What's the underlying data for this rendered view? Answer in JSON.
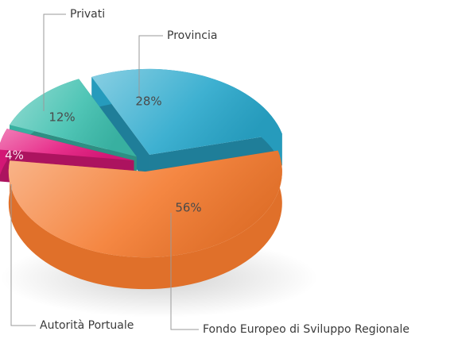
{
  "chart_data": {
    "type": "pie",
    "categories": [
      "Provincia",
      "Fondo Europeo di Sviluppo Regionale",
      "Autorità Portuale",
      "Privati"
    ],
    "values": [
      28,
      56,
      4,
      12
    ],
    "value_labels": [
      "28%",
      "56%",
      "4%",
      "12%"
    ],
    "colors": [
      "#29a8cc",
      "#f47a2e",
      "#e5197f",
      "#3dbfae"
    ]
  }
}
